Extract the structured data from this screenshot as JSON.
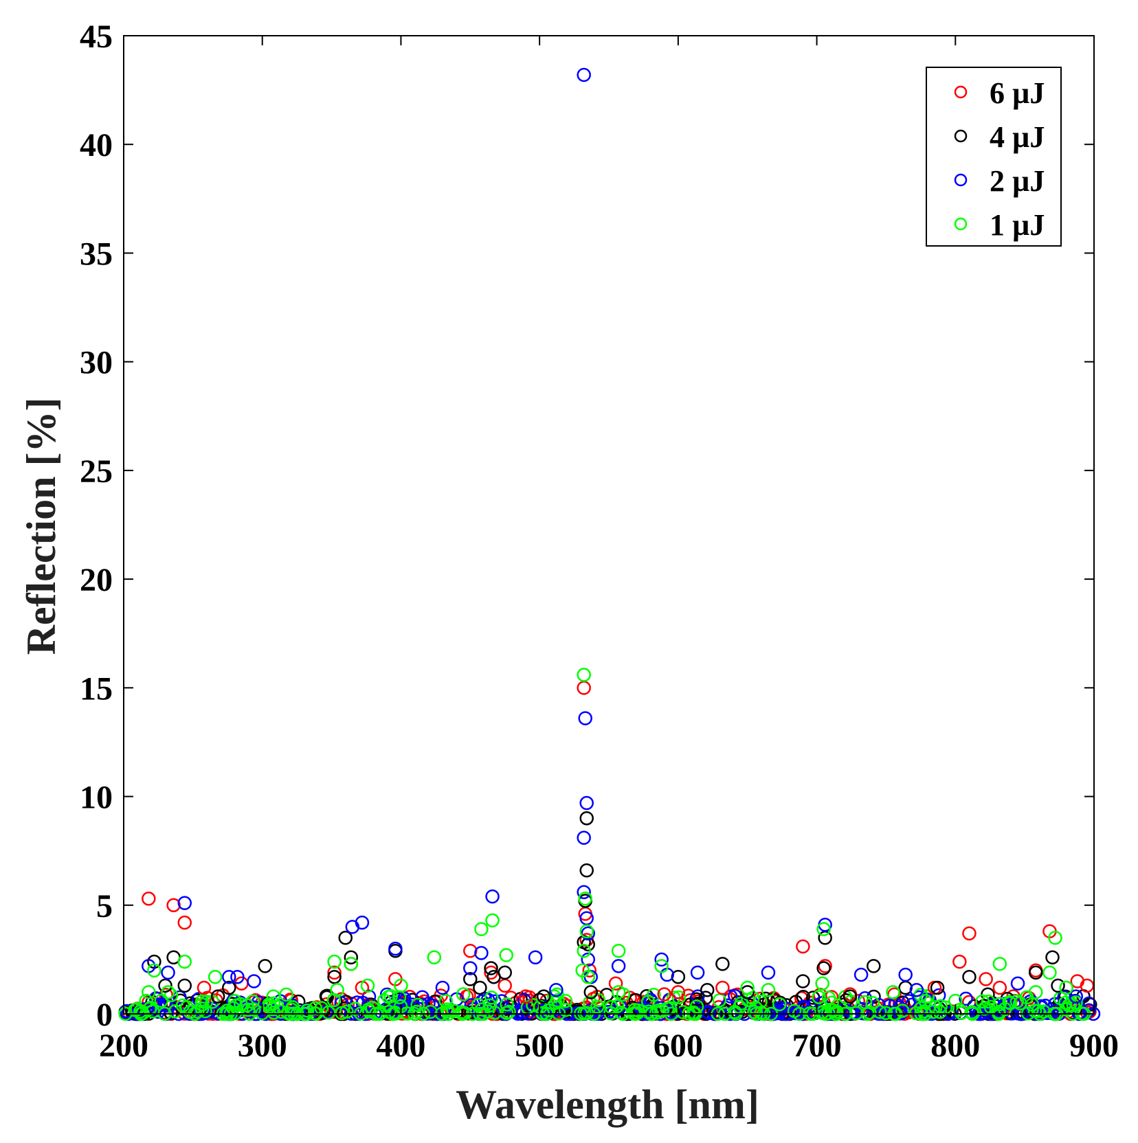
{
  "chart_data": {
    "type": "scatter",
    "title": "",
    "xlabel": "Wavelength [nm]",
    "ylabel": "Reflection [%]",
    "xlim": [
      200,
      900
    ],
    "ylim": [
      0,
      45
    ],
    "xticks": [
      "200",
      "300",
      "400",
      "500",
      "600",
      "700",
      "800",
      "900"
    ],
    "yticks": [
      "0",
      "5",
      "10",
      "15",
      "20",
      "25",
      "30",
      "35",
      "40",
      "45"
    ],
    "grid": false,
    "legend_position": "top-right",
    "series": [
      {
        "name": "6 µJ",
        "color": "#ff0000",
        "points": [
          [
            218,
            5.3
          ],
          [
            236,
            5.0
          ],
          [
            244,
            4.2
          ],
          [
            258,
            1.2
          ],
          [
            285,
            1.4
          ],
          [
            352,
            1.9
          ],
          [
            364,
            2.3
          ],
          [
            372,
            1.2
          ],
          [
            396,
            1.6
          ],
          [
            450,
            2.9
          ],
          [
            465,
            1.9
          ],
          [
            475,
            1.3
          ],
          [
            490,
            0.8
          ],
          [
            532,
            15.0
          ],
          [
            533,
            4.6
          ],
          [
            534,
            3.4
          ],
          [
            536,
            2.0
          ],
          [
            555,
            1.4
          ],
          [
            590,
            0.9
          ],
          [
            600,
            1.0
          ],
          [
            632,
            1.2
          ],
          [
            690,
            3.1
          ],
          [
            706,
            2.2
          ],
          [
            724,
            0.9
          ],
          [
            785,
            1.2
          ],
          [
            803,
            2.4
          ],
          [
            810,
            3.7
          ],
          [
            822,
            1.6
          ],
          [
            832,
            1.2
          ],
          [
            858,
            2.0
          ],
          [
            868,
            3.8
          ],
          [
            888,
            1.5
          ],
          [
            895,
            1.3
          ]
        ]
      },
      {
        "name": "4 µJ",
        "color": "#000000",
        "points": [
          [
            222,
            2.4
          ],
          [
            230,
            1.3
          ],
          [
            236,
            2.6
          ],
          [
            244,
            1.3
          ],
          [
            268,
            0.8
          ],
          [
            276,
            1.2
          ],
          [
            302,
            2.2
          ],
          [
            352,
            1.7
          ],
          [
            360,
            3.5
          ],
          [
            364,
            2.6
          ],
          [
            396,
            2.9
          ],
          [
            450,
            1.6
          ],
          [
            457,
            1.2
          ],
          [
            465,
            2.1
          ],
          [
            467,
            1.7
          ],
          [
            475,
            1.9
          ],
          [
            503,
            0.8
          ],
          [
            532,
            3.3
          ],
          [
            533,
            5.2
          ],
          [
            534,
            9.0
          ],
          [
            534,
            6.6
          ],
          [
            535,
            3.2
          ],
          [
            537,
            1.0
          ],
          [
            600,
            1.7
          ],
          [
            621,
            1.1
          ],
          [
            632,
            2.3
          ],
          [
            650,
            1.0
          ],
          [
            690,
            1.5
          ],
          [
            705,
            2.1
          ],
          [
            706,
            3.5
          ],
          [
            724,
            0.8
          ],
          [
            741,
            2.2
          ],
          [
            764,
            1.2
          ],
          [
            787,
            1.2
          ],
          [
            810,
            1.7
          ],
          [
            858,
            1.9
          ],
          [
            870,
            2.6
          ],
          [
            874,
            1.3
          ]
        ]
      },
      {
        "name": "2 µJ",
        "color": "#0000ff",
        "points": [
          [
            218,
            2.2
          ],
          [
            232,
            1.9
          ],
          [
            244,
            5.1
          ],
          [
            276,
            1.7
          ],
          [
            282,
            1.7
          ],
          [
            294,
            1.5
          ],
          [
            365,
            4.0
          ],
          [
            372,
            4.2
          ],
          [
            396,
            3.0
          ],
          [
            430,
            1.2
          ],
          [
            450,
            2.1
          ],
          [
            458,
            2.8
          ],
          [
            466,
            5.4
          ],
          [
            497,
            2.6
          ],
          [
            512,
            1.1
          ],
          [
            532,
            43.2
          ],
          [
            532,
            5.6
          ],
          [
            532,
            8.1
          ],
          [
            533,
            13.6
          ],
          [
            534,
            9.7
          ],
          [
            534,
            4.4
          ],
          [
            535,
            3.7
          ],
          [
            535,
            2.5
          ],
          [
            537,
            1.7
          ],
          [
            557,
            2.2
          ],
          [
            588,
            2.5
          ],
          [
            592,
            1.8
          ],
          [
            614,
            1.9
          ],
          [
            665,
            1.9
          ],
          [
            706,
            4.1
          ],
          [
            732,
            1.8
          ],
          [
            764,
            1.8
          ],
          [
            772,
            1.1
          ],
          [
            845,
            1.4
          ],
          [
            887,
            0.8
          ]
        ]
      },
      {
        "name": "1 µJ",
        "color": "#00ff00",
        "points": [
          [
            218,
            1.0
          ],
          [
            222,
            2.0
          ],
          [
            232,
            1.0
          ],
          [
            244,
            2.4
          ],
          [
            266,
            1.7
          ],
          [
            308,
            0.8
          ],
          [
            352,
            2.4
          ],
          [
            354,
            1.1
          ],
          [
            364,
            2.3
          ],
          [
            376,
            1.3
          ],
          [
            400,
            1.3
          ],
          [
            424,
            2.6
          ],
          [
            445,
            0.9
          ],
          [
            458,
            3.9
          ],
          [
            466,
            4.3
          ],
          [
            476,
            2.7
          ],
          [
            531,
            2.0
          ],
          [
            532,
            15.6
          ],
          [
            532,
            2.9
          ],
          [
            533,
            5.3
          ],
          [
            534,
            3.8
          ],
          [
            535,
            1.7
          ],
          [
            557,
            2.9
          ],
          [
            557,
            1.0
          ],
          [
            588,
            2.2
          ],
          [
            650,
            1.2
          ],
          [
            665,
            1.1
          ],
          [
            704,
            1.4
          ],
          [
            705,
            3.9
          ],
          [
            755,
            1.0
          ],
          [
            800,
            0.6
          ],
          [
            832,
            2.3
          ],
          [
            858,
            1.0
          ],
          [
            868,
            1.9
          ],
          [
            872,
            3.5
          ],
          [
            880,
            1.2
          ]
        ]
      }
    ]
  }
}
